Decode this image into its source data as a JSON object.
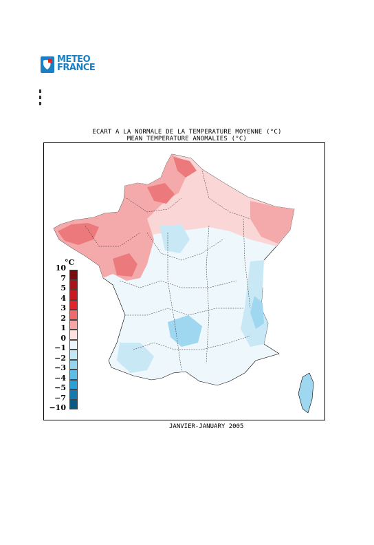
{
  "logo": {
    "line1": "METEO",
    "line2": "FRANCE"
  },
  "title": {
    "line1": "ECART A LA NORMALE DE LA TEMPERATURE MOYENNE (°C)",
    "line2": "MEAN TEMPERATURE ANOMALIES (°C)"
  },
  "footer": "JANVIER-JANUARY 2005",
  "legend": {
    "unit": "°C",
    "labels": [
      "10",
      "7",
      "5",
      "4",
      "3",
      "2",
      "1",
      "0",
      "−1",
      "−2",
      "−3",
      "−4",
      "−5",
      "−7",
      "−10"
    ],
    "colors": [
      "#7a0c10",
      "#a8141a",
      "#c81a20",
      "#e0262a",
      "#ef6a6a",
      "#f6a5a5",
      "#fde0e0",
      "#e9f6fc",
      "#c4e7f6",
      "#94d4ef",
      "#5ebde6",
      "#2aa0d6",
      "#1479b0",
      "#0a5a83"
    ]
  },
  "colors": {
    "warm_strong": "#ec7a7c",
    "warm_mid": "#f4a9aa",
    "warm_light": "#fbd6d6",
    "neutral": "#eef7fc",
    "cool_light": "#c9e8f6",
    "cool_mid": "#9fd7f0",
    "logo_blue": "#1a7fc4",
    "logo_red": "#e2231a"
  }
}
